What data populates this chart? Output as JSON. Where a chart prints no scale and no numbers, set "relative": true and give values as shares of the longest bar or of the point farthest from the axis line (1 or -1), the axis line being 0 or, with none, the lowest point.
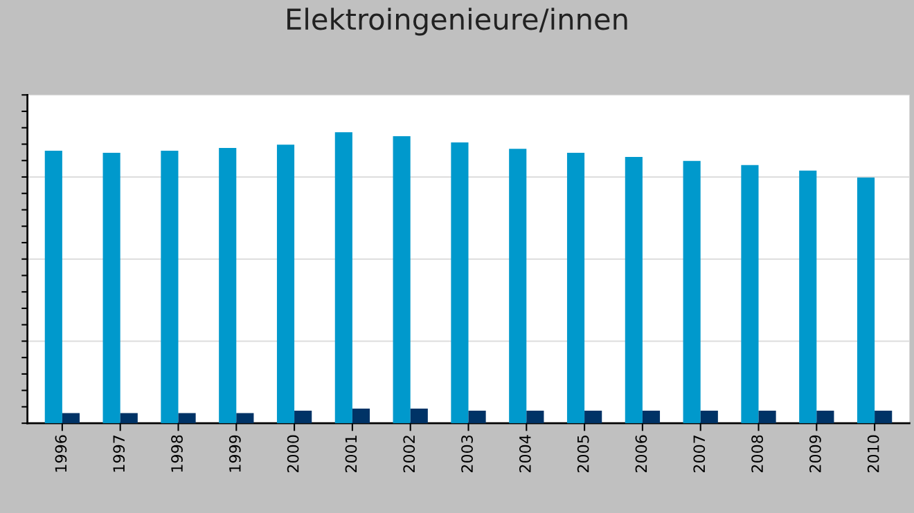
{
  "chart_data": {
    "type": "bar",
    "title": "Elektroingenieure/innen",
    "relative": true,
    "grid": "y",
    "legend": false,
    "categories": [
      "1996",
      "1997",
      "1998",
      "1999",
      "2000",
      "2001",
      "2002",
      "2003",
      "2004",
      "2005",
      "2006",
      "2007",
      "2008",
      "2009",
      "2010"
    ],
    "series": [
      {
        "color": "#0099cc",
        "values": [
          0.936,
          0.929,
          0.936,
          0.946,
          0.957,
          1,
          0.986,
          0.965,
          0.943,
          0.929,
          0.915,
          0.901,
          0.887,
          0.868,
          0.844
        ]
      },
      {
        "color": "#003366",
        "values": [
          0.035,
          0.035,
          0.035,
          0.035,
          0.043,
          0.05,
          0.05,
          0.043,
          0.043,
          0.043,
          0.043,
          0.043,
          0.043,
          0.043,
          0.043
        ]
      }
    ]
  }
}
